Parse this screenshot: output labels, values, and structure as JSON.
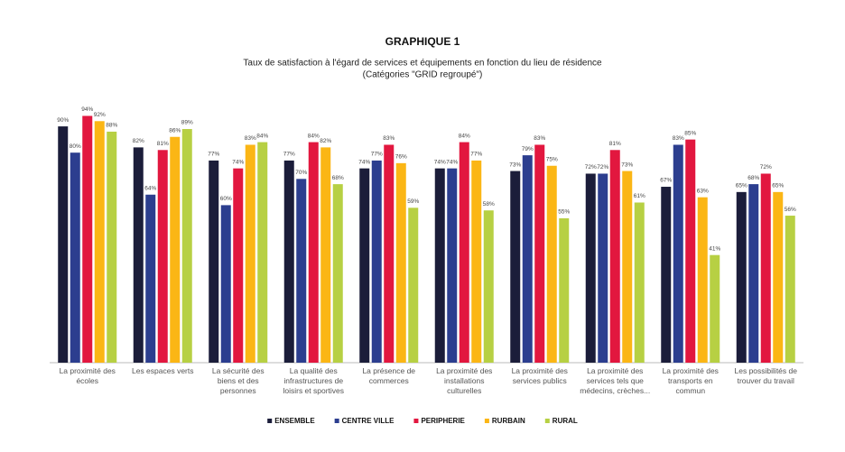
{
  "chart_data": {
    "type": "bar",
    "title": "GRAPHIQUE 1",
    "subtitle": [
      "Taux de satisfaction à l'égard de services et équipements  en fonction du lieu de résidence",
      "(Catégories \"GRID regroupé\")"
    ],
    "categories": [
      "La proximité des écoles",
      "Les espaces verts",
      "La sécurité des biens et des personnes",
      "La qualité des infrastructures de loisirs et sportives",
      "La présence de commerces",
      "La proximité des installations culturelles",
      "La proximité des services publics",
      "La proximité des services tels que médecins, crèches...",
      "La proximité des transports en commun",
      "Les possibilités de trouver du travail"
    ],
    "series": [
      {
        "name": "ENSEMBLE",
        "color": "#1b1d3a",
        "values": [
          90,
          82,
          77,
          77,
          74,
          74,
          73,
          72,
          67,
          65
        ],
        "value_labels": [
          "90%",
          "82%",
          "77%",
          "77%",
          "74%",
          "74%",
          "73%",
          "72%",
          "67%",
          "65%"
        ]
      },
      {
        "name": "CENTRE VILLE",
        "color": "#2c3e8f",
        "values": [
          80,
          64,
          60,
          70,
          77,
          74,
          79,
          72,
          83,
          68
        ],
        "value_labels": [
          "80%",
          "64%",
          "60%",
          "70%",
          "77%",
          "74%",
          "79%",
          "72%",
          "83%",
          "68%"
        ]
      },
      {
        "name": "PERIPHERIE",
        "color": "#e2173f",
        "values": [
          94,
          81,
          74,
          84,
          83,
          84,
          83,
          81,
          85,
          72
        ],
        "value_labels": [
          "94%",
          "81%",
          "74%",
          "84%",
          "83%",
          "84%",
          "83%",
          "81%",
          "85%",
          "72%"
        ]
      },
      {
        "name": "RURBAIN",
        "color": "#fbb615",
        "values": [
          92,
          86,
          83,
          82,
          76,
          77,
          75,
          73,
          63,
          65
        ],
        "value_labels": [
          "92%",
          "86%",
          "83%",
          "82%",
          "76%",
          "77%",
          "75%",
          "73%",
          "63%",
          "65%"
        ]
      },
      {
        "name": "RURAL",
        "color": "#b7d043",
        "values": [
          88,
          89,
          84,
          68,
          59,
          58,
          55,
          61,
          41,
          56
        ],
        "value_labels": [
          "88%",
          "89%",
          "84%",
          "68%",
          "59%",
          "58%",
          "55%",
          "61%",
          "41%",
          "56%"
        ]
      }
    ],
    "ylim": [
      0,
      100
    ]
  }
}
